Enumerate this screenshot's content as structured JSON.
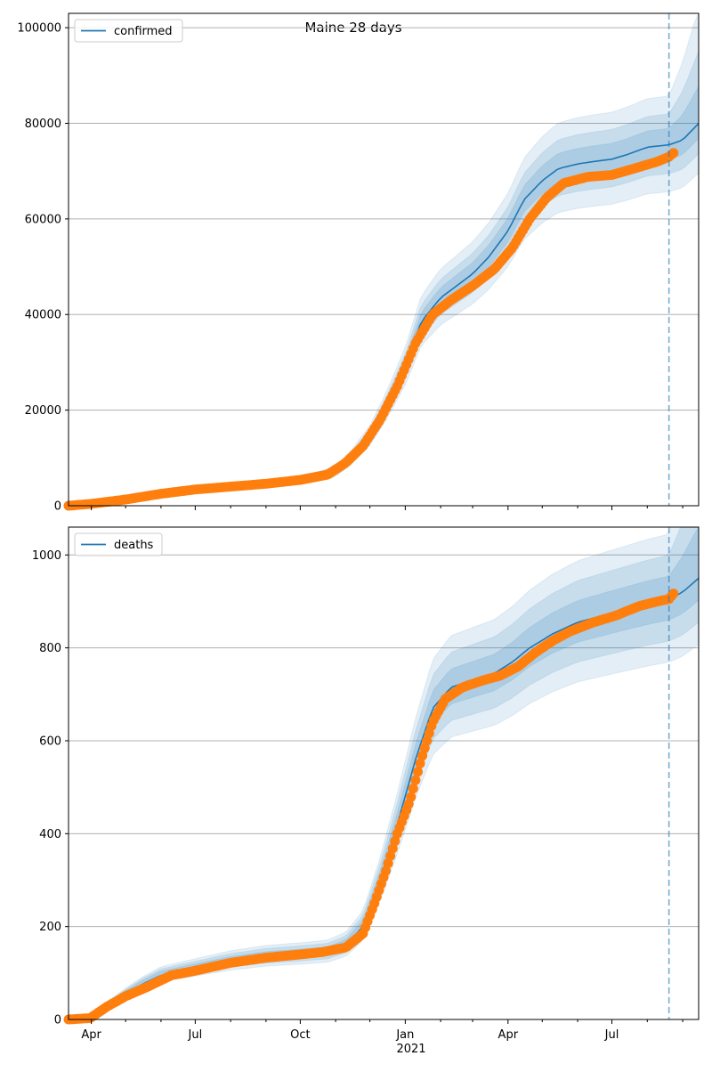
{
  "figure": {
    "title": "Maine 28 days",
    "x_tick_labels": [
      "Apr",
      "Jul",
      "Oct",
      "Jan",
      "Apr",
      "Jul"
    ],
    "x_year_label": "2021",
    "colors": {
      "model": "#1f77b4",
      "observed": "#ff7f0e",
      "band": "#1f77b4",
      "grid": "#b0b0b0"
    }
  },
  "chart_data": [
    {
      "type": "line",
      "panel": "top",
      "legend": "confirmed",
      "legend_position": "upper-left",
      "grid": "horizontal",
      "x_range": [
        "2020-03-12",
        "2021-09-15"
      ],
      "ylim": [
        0,
        103000
      ],
      "y_ticks": [
        0,
        20000,
        40000,
        60000,
        80000,
        100000
      ],
      "y_tick_labels": [
        "0",
        "20000",
        "40000",
        "60000",
        "80000",
        "100000"
      ],
      "forecast_start": "2021-08-20",
      "model_curve": [
        [
          "2020-03-12",
          0
        ],
        [
          "2020-04-15",
          900
        ],
        [
          "2020-05-15",
          1800
        ],
        [
          "2020-06-15",
          2800
        ],
        [
          "2020-07-15",
          3600
        ],
        [
          "2020-08-15",
          4100
        ],
        [
          "2020-09-15",
          4800
        ],
        [
          "2020-10-15",
          5800
        ],
        [
          "2020-11-01",
          7000
        ],
        [
          "2020-11-15",
          10000
        ],
        [
          "2020-12-01",
          14500
        ],
        [
          "2020-12-15",
          20500
        ],
        [
          "2021-01-01",
          29000
        ],
        [
          "2021-01-15",
          38500
        ],
        [
          "2021-02-01",
          43500
        ],
        [
          "2021-02-15",
          46000
        ],
        [
          "2021-03-01",
          48500
        ],
        [
          "2021-03-15",
          52000
        ],
        [
          "2021-04-01",
          57500
        ],
        [
          "2021-04-15",
          64000
        ],
        [
          "2021-05-01",
          68000
        ],
        [
          "2021-05-15",
          70500
        ],
        [
          "2021-06-01",
          71500
        ],
        [
          "2021-06-15",
          72000
        ],
        [
          "2021-07-01",
          72500
        ],
        [
          "2021-07-15",
          73500
        ],
        [
          "2021-08-01",
          75000
        ],
        [
          "2021-08-20",
          75500
        ],
        [
          "2021-09-01",
          76500
        ],
        [
          "2021-09-15",
          80000
        ]
      ],
      "band_rel_widths": [
        0.04,
        0.08,
        0.13
      ],
      "observed": [
        [
          "2020-03-12",
          0
        ],
        [
          "2020-04-01",
          400
        ],
        [
          "2020-05-01",
          1300
        ],
        [
          "2020-06-01",
          2500
        ],
        [
          "2020-07-01",
          3400
        ],
        [
          "2020-08-01",
          4000
        ],
        [
          "2020-09-01",
          4600
        ],
        [
          "2020-10-01",
          5400
        ],
        [
          "2020-10-25",
          6500
        ],
        [
          "2020-11-10",
          9000
        ],
        [
          "2020-11-25",
          12500
        ],
        [
          "2020-12-10",
          18000
        ],
        [
          "2020-12-25",
          25000
        ],
        [
          "2021-01-10",
          34000
        ],
        [
          "2021-01-25",
          40000
        ],
        [
          "2021-02-10",
          43000
        ],
        [
          "2021-03-01",
          46000
        ],
        [
          "2021-03-20",
          49500
        ],
        [
          "2021-04-05",
          54000
        ],
        [
          "2021-04-20",
          60000
        ],
        [
          "2021-05-05",
          64500
        ],
        [
          "2021-05-20",
          67500
        ],
        [
          "2021-06-10",
          68800
        ],
        [
          "2021-07-01",
          69200
        ],
        [
          "2021-07-20",
          70500
        ],
        [
          "2021-08-10",
          72000
        ],
        [
          "2021-08-20",
          73000
        ],
        [
          "2021-08-25",
          74000
        ]
      ]
    },
    {
      "type": "line",
      "panel": "bottom",
      "legend": "deaths",
      "legend_position": "upper-left",
      "grid": "horizontal",
      "x_range": [
        "2020-03-12",
        "2021-09-15"
      ],
      "ylim": [
        0,
        1060
      ],
      "y_ticks": [
        0,
        200,
        400,
        600,
        800,
        1000
      ],
      "y_tick_labels": [
        "0",
        "200",
        "400",
        "600",
        "800",
        "1000"
      ],
      "forecast_start": "2021-08-20",
      "model_curve": [
        [
          "2020-03-12",
          0
        ],
        [
          "2020-04-01",
          5
        ],
        [
          "2020-04-15",
          30
        ],
        [
          "2020-05-01",
          55
        ],
        [
          "2020-05-15",
          75
        ],
        [
          "2020-06-01",
          95
        ],
        [
          "2020-07-01",
          110
        ],
        [
          "2020-08-01",
          125
        ],
        [
          "2020-09-01",
          135
        ],
        [
          "2020-10-01",
          140
        ],
        [
          "2020-10-25",
          145
        ],
        [
          "2020-11-10",
          160
        ],
        [
          "2020-11-25",
          200
        ],
        [
          "2020-12-10",
          300
        ],
        [
          "2020-12-25",
          420
        ],
        [
          "2021-01-10",
          560
        ],
        [
          "2021-01-25",
          670
        ],
        [
          "2021-02-10",
          715
        ],
        [
          "2021-03-01",
          730
        ],
        [
          "2021-03-20",
          745
        ],
        [
          "2021-04-05",
          770
        ],
        [
          "2021-04-20",
          800
        ],
        [
          "2021-05-10",
          830
        ],
        [
          "2021-06-01",
          855
        ],
        [
          "2021-07-01",
          875
        ],
        [
          "2021-08-01",
          895
        ],
        [
          "2021-08-20",
          905
        ],
        [
          "2021-09-01",
          920
        ],
        [
          "2021-09-15",
          950
        ]
      ],
      "band_rel_widths": [
        0.05,
        0.1,
        0.15
      ],
      "observed": [
        [
          "2020-03-12",
          0
        ],
        [
          "2020-03-31",
          3
        ],
        [
          "2020-04-15",
          28
        ],
        [
          "2020-05-01",
          50
        ],
        [
          "2020-05-20",
          70
        ],
        [
          "2020-06-10",
          95
        ],
        [
          "2020-07-01",
          105
        ],
        [
          "2020-08-01",
          122
        ],
        [
          "2020-09-01",
          133
        ],
        [
          "2020-10-01",
          140
        ],
        [
          "2020-10-20",
          145
        ],
        [
          "2020-11-10",
          155
        ],
        [
          "2020-11-25",
          185
        ],
        [
          "2020-12-05",
          250
        ],
        [
          "2020-12-15",
          320
        ],
        [
          "2020-12-25",
          400
        ],
        [
          "2021-01-05",
          470
        ],
        [
          "2021-01-15",
          560
        ],
        [
          "2021-01-25",
          640
        ],
        [
          "2021-02-05",
          690
        ],
        [
          "2021-02-20",
          715
        ],
        [
          "2021-03-10",
          730
        ],
        [
          "2021-03-25",
          740
        ],
        [
          "2021-04-10",
          760
        ],
        [
          "2021-04-25",
          790
        ],
        [
          "2021-05-10",
          815
        ],
        [
          "2021-05-25",
          835
        ],
        [
          "2021-06-15",
          855
        ],
        [
          "2021-07-05",
          870
        ],
        [
          "2021-07-25",
          890
        ],
        [
          "2021-08-10",
          900
        ],
        [
          "2021-08-20",
          905
        ],
        [
          "2021-08-25",
          920
        ]
      ]
    }
  ]
}
